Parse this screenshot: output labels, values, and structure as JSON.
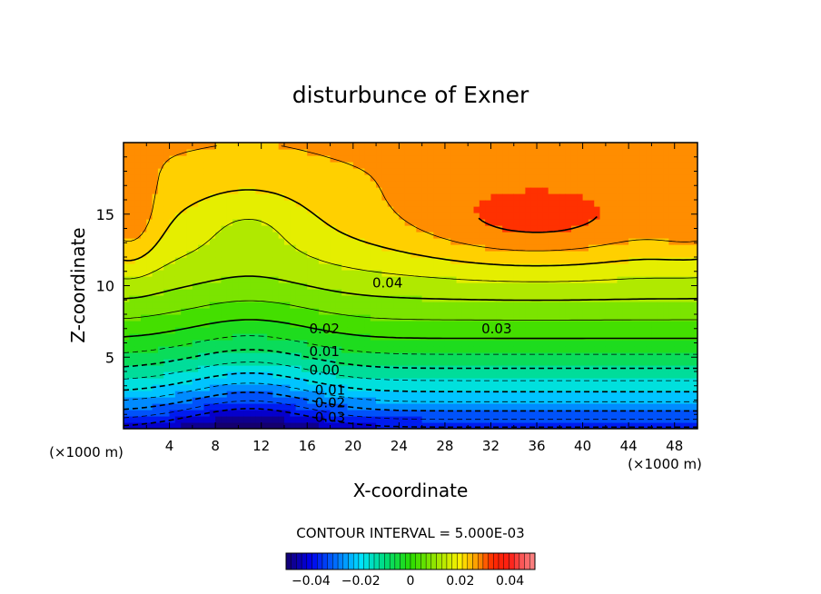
{
  "chart_data": {
    "type": "contour",
    "title": "disturbunce of Exner",
    "xlabel": "X-coordinate",
    "ylabel": "Z-coordinate",
    "x_unit_label": "(×1000 m)",
    "y_unit_label": "(×1000 m)",
    "xlim": [
      0,
      50
    ],
    "ylim": [
      0,
      20
    ],
    "x_ticks": [
      4,
      8,
      12,
      16,
      20,
      24,
      28,
      32,
      36,
      40,
      44,
      48
    ],
    "y_ticks": [
      5,
      10,
      15
    ],
    "contour_interval_label": "CONTOUR INTERVAL = 5.000E-03",
    "contour_interval": 0.005,
    "contour_labels": [
      {
        "text": "0.04",
        "x": 23,
        "z": 10.2
      },
      {
        "text": "0.03",
        "x": 32.5,
        "z": 7.0
      },
      {
        "text": "0.02",
        "x": 17.5,
        "z": 7.0
      },
      {
        "text": "0.01",
        "x": 17.5,
        "z": 5.4
      },
      {
        "text": "0.00",
        "x": 17.5,
        "z": 4.1
      },
      {
        "text": "0.01",
        "x": 18,
        "z": 2.7
      },
      {
        "text": "0.02",
        "x": 18,
        "z": 1.8
      },
      {
        "text": "0.03",
        "x": 18,
        "z": 0.8
      }
    ],
    "colorbar": {
      "min": -0.05,
      "max": 0.05,
      "tick_values": [
        -0.04,
        -0.02,
        0,
        0.02,
        0.04
      ],
      "tick_labels": [
        "−0.04",
        "−0.02",
        "0",
        "0.02",
        "0.04"
      ]
    },
    "colors": {
      "min": "#000080",
      "mid": "#00ff00",
      "max": "#ff0000",
      "frame": "#000000"
    }
  }
}
